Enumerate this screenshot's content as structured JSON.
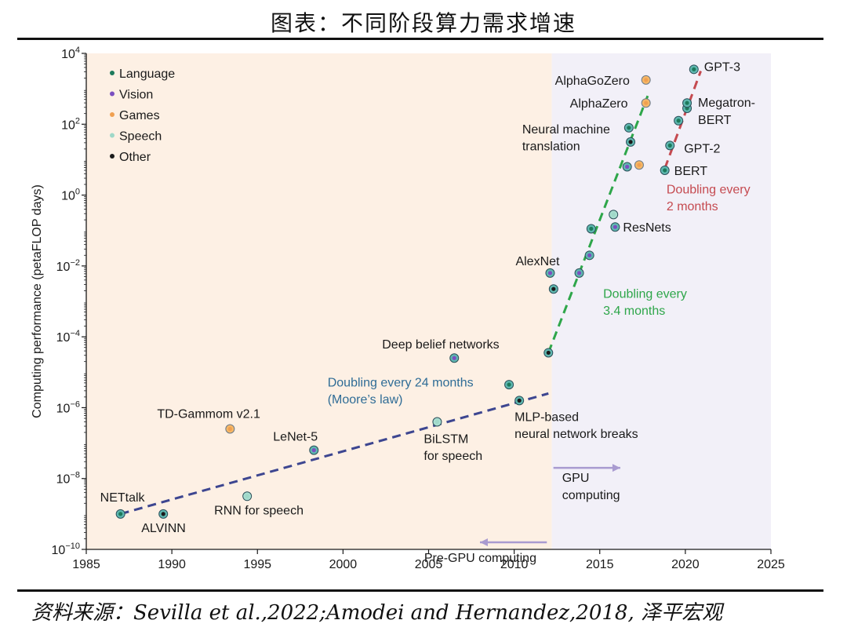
{
  "page": {
    "title": "图表：不同阶段算力需求增速",
    "source": "资料来源：Sevilla et al.,2022;Amodei and Hernandez,2018, 泽平宏观"
  },
  "colors": {
    "Language": "#1d7a5c",
    "Vision": "#7b4fc0",
    "Games": "#f0a050",
    "Speech": "#9fd8c8",
    "Other": "#1a1a1a",
    "moore_trend": "#3d4690",
    "gpu_trend": "#2ea64a",
    "recent_trend": "#c54a50",
    "pre_gpu_bg": "#fdf0e4",
    "gpu_bg": "#f2f0f8",
    "arrow": "#a99bd0"
  },
  "chart_data": {
    "type": "scatter",
    "xlabel": "",
    "ylabel": "Computing performance (petaFLOP days)",
    "xlim": [
      1985,
      2025
    ],
    "ylim_exponent": [
      -10,
      4
    ],
    "y_scale": "log",
    "x_ticks": [
      1985,
      1990,
      1995,
      2000,
      2005,
      2010,
      2015,
      2020,
      2025
    ],
    "y_tick_exponents": [
      -10,
      -8,
      -6,
      -4,
      -2,
      0,
      2,
      4
    ],
    "legend": {
      "placement": "top-left",
      "entries": [
        "Language",
        "Vision",
        "Games",
        "Speech",
        "Other"
      ]
    },
    "regions": [
      {
        "label": "Pre-GPU computing",
        "x": [
          1985,
          2012.2
        ]
      },
      {
        "label": "GPU computing",
        "x": [
          2012.2,
          2025
        ]
      }
    ],
    "points": [
      {
        "x": 1987.0,
        "y_exp": -9.0,
        "cat": "Language",
        "label": "NETtalk"
      },
      {
        "x": 1989.5,
        "y_exp": -9.0,
        "cat": "Other",
        "label": "ALVINN"
      },
      {
        "x": 1993.4,
        "y_exp": -6.6,
        "cat": "Games",
        "label": "TD-Gammom v2.1"
      },
      {
        "x": 1994.4,
        "y_exp": -8.5,
        "cat": "Speech",
        "label": "RNN for speech"
      },
      {
        "x": 1998.3,
        "y_exp": -7.2,
        "cat": "Vision",
        "label": "LeNet-5"
      },
      {
        "x": 2005.5,
        "y_exp": -6.4,
        "cat": "Speech",
        "label": "BiLSTM\nfor speech"
      },
      {
        "x": 2006.5,
        "y_exp": -4.6,
        "cat": "Vision",
        "label": "Deep belief networks"
      },
      {
        "x": 2009.7,
        "y_exp": -5.35,
        "cat": "Language",
        "label": ""
      },
      {
        "x": 2010.3,
        "y_exp": -5.8,
        "cat": "Other",
        "label": "MLP-based\nneural network breaks"
      },
      {
        "x": 2012.0,
        "y_exp": -4.45,
        "cat": "Other",
        "label": ""
      },
      {
        "x": 2012.1,
        "y_exp": -2.2,
        "cat": "Vision",
        "label": "AlexNet"
      },
      {
        "x": 2012.3,
        "y_exp": -2.65,
        "cat": "Other",
        "label": ""
      },
      {
        "x": 2013.8,
        "y_exp": -2.2,
        "cat": "Vision",
        "label": ""
      },
      {
        "x": 2014.4,
        "y_exp": -1.7,
        "cat": "Vision",
        "label": ""
      },
      {
        "x": 2014.5,
        "y_exp": -0.95,
        "cat": "Language",
        "label": ""
      },
      {
        "x": 2015.8,
        "y_exp": -0.55,
        "cat": "Speech",
        "label": ""
      },
      {
        "x": 2015.9,
        "y_exp": -0.9,
        "cat": "Vision",
        "label": "ResNets"
      },
      {
        "x": 2016.6,
        "y_exp": 0.8,
        "cat": "Vision",
        "label": ""
      },
      {
        "x": 2016.7,
        "y_exp": 1.9,
        "cat": "Language",
        "label": "Neural machine\ntranslation"
      },
      {
        "x": 2016.8,
        "y_exp": 1.5,
        "cat": "Other",
        "label": ""
      },
      {
        "x": 2017.3,
        "y_exp": 0.85,
        "cat": "Games",
        "label": ""
      },
      {
        "x": 2017.7,
        "y_exp": 2.6,
        "cat": "Games",
        "label": "AlphaZero"
      },
      {
        "x": 2017.7,
        "y_exp": 3.25,
        "cat": "Games",
        "label": "AlphaGoZero"
      },
      {
        "x": 2018.8,
        "y_exp": 0.7,
        "cat": "Language",
        "label": "BERT"
      },
      {
        "x": 2019.1,
        "y_exp": 1.4,
        "cat": "Language",
        "label": "GPT-2"
      },
      {
        "x": 2019.6,
        "y_exp": 2.1,
        "cat": "Language",
        "label": ""
      },
      {
        "x": 2020.1,
        "y_exp": 2.45,
        "cat": "Language",
        "label": ""
      },
      {
        "x": 2020.1,
        "y_exp": 2.6,
        "cat": "Language",
        "label": "Megatron-\nBERT"
      },
      {
        "x": 2020.5,
        "y_exp": 3.55,
        "cat": "Language",
        "label": "GPT-3"
      }
    ],
    "trendlines": [
      {
        "name": "Doubling every 24 months\n(Moore’s law)",
        "from": [
          1987.0,
          -9.0
        ],
        "to": [
          2012.0,
          -5.6
        ],
        "color_key": "moore_trend"
      },
      {
        "name": "Doubling every\n3.4 months",
        "from": [
          2012.0,
          -4.45
        ],
        "to": [
          2017.8,
          2.8
        ],
        "color_key": "gpu_trend"
      },
      {
        "name": "Doubling every\n2 months",
        "from": [
          2018.8,
          0.75
        ],
        "to": [
          2020.9,
          3.5
        ],
        "color_key": "recent_trend"
      }
    ]
  }
}
